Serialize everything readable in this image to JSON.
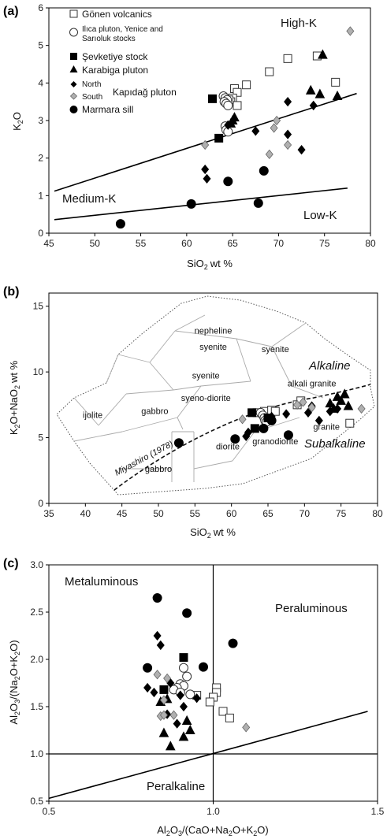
{
  "symbols": {
    "gonen": {
      "shape": "square",
      "fill": "#ffffff",
      "stroke": "#333333"
    },
    "ilica": {
      "shape": "circle",
      "fill": "#ffffff",
      "stroke": "#333333"
    },
    "sevketiye": {
      "shape": "square",
      "fill": "#000000",
      "stroke": "#000000"
    },
    "karabiga": {
      "shape": "triangle",
      "fill": "#000000",
      "stroke": "#000000"
    },
    "kapidag_north": {
      "shape": "diamond",
      "fill": "#000000",
      "stroke": "#000000"
    },
    "kapidag_south": {
      "shape": "diamond",
      "fill": "#b0b0b0",
      "stroke": "#666666"
    },
    "marmara": {
      "shape": "circle",
      "fill": "#000000",
      "stroke": "#000000"
    }
  },
  "legend": {
    "gonen": "Gönen volcanics",
    "ilica_line1": "Ilıca pluton, Yenice and",
    "ilica_line2": "Sarıoluk stocks",
    "sevketiye": "Şevketiye stock",
    "karabiga": "Karabiga pluton",
    "north": "North",
    "south": "South",
    "kapidag": "Kapıdağ pluton",
    "marmara": "Marmara sill"
  },
  "chart_data": [
    {
      "panel": "(a)",
      "type": "scatter",
      "xlabel_main": "SiO",
      "xlabel_sub": "2",
      "xlabel_tail": "wt %",
      "ylabel_main": "K",
      "ylabel_sub": "2",
      "ylabel_tail": "O",
      "xlim": [
        45,
        80
      ],
      "ylim": [
        0,
        6
      ],
      "xticks": [
        45,
        50,
        55,
        60,
        65,
        70,
        75,
        80
      ],
      "yticks": [
        0,
        1,
        2,
        3,
        4,
        5,
        6
      ],
      "regions": {
        "high": "High-K",
        "medium": "Medium-K",
        "low": "Low-K"
      },
      "lines": [
        {
          "x": [
            45.6,
            78.5
          ],
          "y": [
            1.12,
            3.72
          ]
        },
        {
          "x": [
            45.6,
            77.5
          ],
          "y": [
            0.36,
            1.2
          ]
        }
      ],
      "series": [
        {
          "symbol": "gonen",
          "x": [
            65.2,
            65.5,
            66.5,
            65.0,
            64.8,
            65.5,
            64.6,
            69.0,
            71.0,
            74.2,
            76.2
          ],
          "y": [
            3.85,
            3.75,
            3.95,
            3.6,
            3.5,
            3.4,
            3.55,
            4.3,
            4.65,
            4.72,
            4.02
          ]
        },
        {
          "symbol": "ilica",
          "x": [
            64.0,
            64.2,
            64.4,
            64.1,
            64.3,
            64.5,
            64.2,
            64.3,
            64.5
          ],
          "y": [
            3.65,
            3.6,
            3.55,
            3.5,
            3.45,
            3.4,
            2.85,
            2.75,
            2.7
          ]
        },
        {
          "symbol": "sevketiye",
          "x": [
            62.8,
            63.5
          ],
          "y": [
            3.58,
            2.53
          ]
        },
        {
          "symbol": "karabiga",
          "x": [
            65.2,
            65.0,
            64.8,
            74.8,
            73.5,
            74.5,
            76.4
          ],
          "y": [
            3.08,
            3.0,
            2.92,
            4.75,
            3.8,
            3.7,
            3.65
          ]
        },
        {
          "symbol": "kapidag_north",
          "x": [
            64.5,
            67.5,
            71.0,
            62.0,
            62.2,
            71.0,
            72.5,
            73.8
          ],
          "y": [
            2.88,
            2.72,
            3.5,
            1.7,
            1.45,
            2.63,
            2.22,
            3.4
          ]
        },
        {
          "symbol": "kapidag_south",
          "x": [
            62.0,
            69.5,
            69.8,
            69.0,
            71.0,
            77.8
          ],
          "y": [
            2.35,
            2.8,
            3.0,
            2.1,
            2.35,
            5.38
          ]
        },
        {
          "symbol": "marmara",
          "x": [
            52.8,
            60.5,
            64.5,
            67.8,
            68.4
          ],
          "y": [
            0.25,
            0.78,
            1.38,
            0.8,
            1.66
          ]
        }
      ]
    },
    {
      "panel": "(b)",
      "type": "scatter",
      "xlabel_main": "SiO",
      "xlabel_sub": "2",
      "xlabel_tail": "wt %",
      "ylabel_a": "K",
      "ylabel_a_sub": "2",
      "ylabel_b": "O+NaO",
      "ylabel_b_sub": "2",
      "ylabel_tail": "wt %",
      "xlim": [
        35,
        80
      ],
      "ylim": [
        0,
        16
      ],
      "xticks": [
        35,
        40,
        45,
        50,
        55,
        60,
        65,
        70,
        75,
        80
      ],
      "yticks": [
        0,
        5,
        10,
        15
      ],
      "fields": [
        {
          "text": "nepheline",
          "x": 57.5,
          "y": 12.9
        },
        {
          "text": "syenite",
          "x": 57.5,
          "y": 11.7
        },
        {
          "text": "syenite",
          "x": 66.0,
          "y": 11.5
        },
        {
          "text": "syenite",
          "x": 56.5,
          "y": 9.5
        },
        {
          "text": "alkali granite",
          "x": 71.0,
          "y": 8.9
        },
        {
          "text": "syeno-diorite",
          "x": 56.5,
          "y": 7.8
        },
        {
          "text": "ijolite",
          "x": 41.0,
          "y": 6.5
        },
        {
          "text": "gabbro",
          "x": 49.5,
          "y": 6.8
        },
        {
          "text": "granite",
          "x": 73.0,
          "y": 5.6
        },
        {
          "text": "granodiorite",
          "x": 66.0,
          "y": 4.5
        },
        {
          "text": "diorite",
          "x": 59.5,
          "y": 4.1
        },
        {
          "text": "gabbro",
          "x": 50.0,
          "y": 2.4
        }
      ],
      "alkaline_label": "Alkaline",
      "subalkaline_label": "Subalkaline",
      "miyashiro_label": "Miyashiro (1978)",
      "series": [
        {
          "symbol": "gonen",
          "x": [
            63.5,
            64.5,
            65.5,
            66.0,
            69.0,
            69.5,
            76.2
          ],
          "y": [
            6.9,
            7.0,
            7.1,
            7.0,
            7.5,
            7.8,
            6.1
          ]
        },
        {
          "symbol": "ilica",
          "x": [
            64.0,
            64.3,
            64.5,
            64.6,
            64.8
          ],
          "y": [
            6.9,
            6.7,
            6.5,
            6.3,
            6.2
          ]
        },
        {
          "symbol": "sevketiye",
          "x": [
            62.8,
            63.2,
            65.0
          ],
          "y": [
            6.9,
            5.7,
            6.5
          ]
        },
        {
          "symbol": "karabiga",
          "x": [
            73.5,
            74.5,
            75.0,
            75.5,
            76.0,
            74.0
          ],
          "y": [
            7.6,
            8.1,
            7.8,
            8.3,
            7.4,
            7.2
          ]
        },
        {
          "symbol": "kapidag_north",
          "x": [
            62.0,
            62.3,
            65.5,
            67.5,
            71.0,
            72.0,
            73.5,
            74.5,
            70.5
          ],
          "y": [
            5.1,
            5.4,
            6.6,
            6.8,
            7.4,
            6.3,
            7.0,
            7.2,
            6.9
          ]
        },
        {
          "symbol": "kapidag_south",
          "x": [
            61.5,
            69.0,
            69.8,
            71.0,
            77.8
          ],
          "y": [
            6.4,
            7.5,
            7.7,
            7.3,
            7.2
          ]
        },
        {
          "symbol": "marmara",
          "x": [
            52.8,
            60.5,
            64.4,
            67.8,
            65.5
          ],
          "y": [
            4.6,
            4.9,
            5.7,
            5.2,
            6.3
          ]
        }
      ]
    },
    {
      "panel": "(c)",
      "type": "scatter",
      "xlabel_a": "Al",
      "xlabel_a_sub": "2",
      "xlabel_b": "O",
      "xlabel_b_sub": "3",
      "xlabel_c": "/(CaO+Na",
      "xlabel_c_sub": "2",
      "xlabel_d": "O+K",
      "xlabel_d_sub": "2",
      "xlabel_e": "O)",
      "ylabel_a": "Al",
      "ylabel_a_sub": "2",
      "ylabel_b": "O",
      "ylabel_b_sub": "3",
      "ylabel_c": "/(Na",
      "ylabel_c_sub": "2",
      "ylabel_d": "O+K",
      "ylabel_d_sub": "2",
      "ylabel_e": "O)",
      "xlim": [
        0.5,
        1.5
      ],
      "ylim": [
        0.5,
        3.0
      ],
      "xticks": [
        "0.5",
        "1.0",
        "1.5"
      ],
      "yticks": [
        "0.5",
        "1.0",
        "1.5",
        "2.0",
        "2.5",
        "3.0"
      ],
      "regions": {
        "meta": "Metaluminous",
        "per": "Peraluminous",
        "alk": "Peralkaline"
      },
      "lines": [
        {
          "x": [
            0.5,
            1.47
          ],
          "y": [
            0.53,
            1.45
          ]
        }
      ],
      "series": [
        {
          "symbol": "gonen",
          "x": [
            1.01,
            1.01,
            1.0,
            0.99,
            1.03,
            1.05,
            0.95
          ],
          "y": [
            1.7,
            1.65,
            1.6,
            1.55,
            1.45,
            1.38,
            1.62
          ]
        },
        {
          "symbol": "ilica",
          "x": [
            0.91,
            0.92,
            0.9,
            0.91,
            0.89,
            0.88,
            0.9,
            0.93
          ],
          "y": [
            1.91,
            1.82,
            1.74,
            1.72,
            1.7,
            1.68,
            1.65,
            1.63
          ]
        },
        {
          "symbol": "sevketiye",
          "x": [
            0.91,
            0.85
          ],
          "y": [
            2.02,
            1.68
          ]
        },
        {
          "symbol": "karabiga",
          "x": [
            0.86,
            0.84,
            0.92,
            0.85,
            0.93,
            0.91,
            0.87
          ],
          "y": [
            1.58,
            1.55,
            1.35,
            1.22,
            1.25,
            1.18,
            1.08
          ]
        },
        {
          "symbol": "kapidag_north",
          "x": [
            0.83,
            0.84,
            0.8,
            0.82,
            0.87,
            0.9,
            0.95,
            0.91,
            0.86,
            0.89
          ],
          "y": [
            2.25,
            2.15,
            1.7,
            1.65,
            1.75,
            1.62,
            1.59,
            1.5,
            1.42,
            1.32
          ]
        },
        {
          "symbol": "kapidag_south",
          "x": [
            0.83,
            0.86,
            0.85,
            0.84,
            0.85,
            0.88,
            1.1
          ],
          "y": [
            1.84,
            1.8,
            1.57,
            1.4,
            1.41,
            1.41,
            1.28
          ]
        },
        {
          "symbol": "marmara",
          "x": [
            0.83,
            0.92,
            0.8,
            0.97,
            1.06
          ],
          "y": [
            2.65,
            2.49,
            1.91,
            1.92,
            2.17
          ]
        }
      ]
    }
  ]
}
